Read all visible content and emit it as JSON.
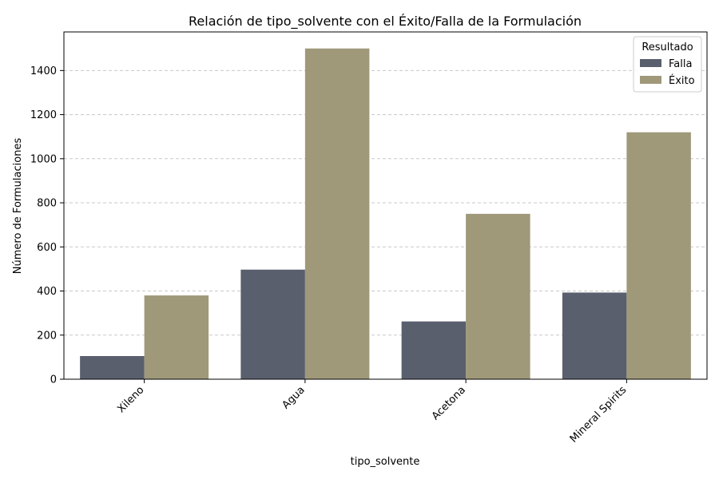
{
  "chart_data": {
    "type": "bar",
    "title": "Relación de tipo_solvente con el Éxito/Falla de la Formulación",
    "xlabel": "tipo_solvente",
    "ylabel": "Número de Formulaciones",
    "categories": [
      "Xileno",
      "Agua",
      "Acetona",
      "Mineral Spirits"
    ],
    "series": [
      {
        "name": "Falla",
        "values": [
          105,
          497,
          262,
          393
        ],
        "color": "#5a5f6e"
      },
      {
        "name": "Éxito",
        "values": [
          380,
          1500,
          750,
          1120
        ],
        "color": "#9f997a"
      }
    ],
    "ylim": [
      0,
      1575
    ],
    "yticks": [
      0,
      200,
      400,
      600,
      800,
      1000,
      1200,
      1400
    ],
    "grid": "y-dashed",
    "legend": {
      "title": "Resultado",
      "placement": "top-right"
    }
  }
}
